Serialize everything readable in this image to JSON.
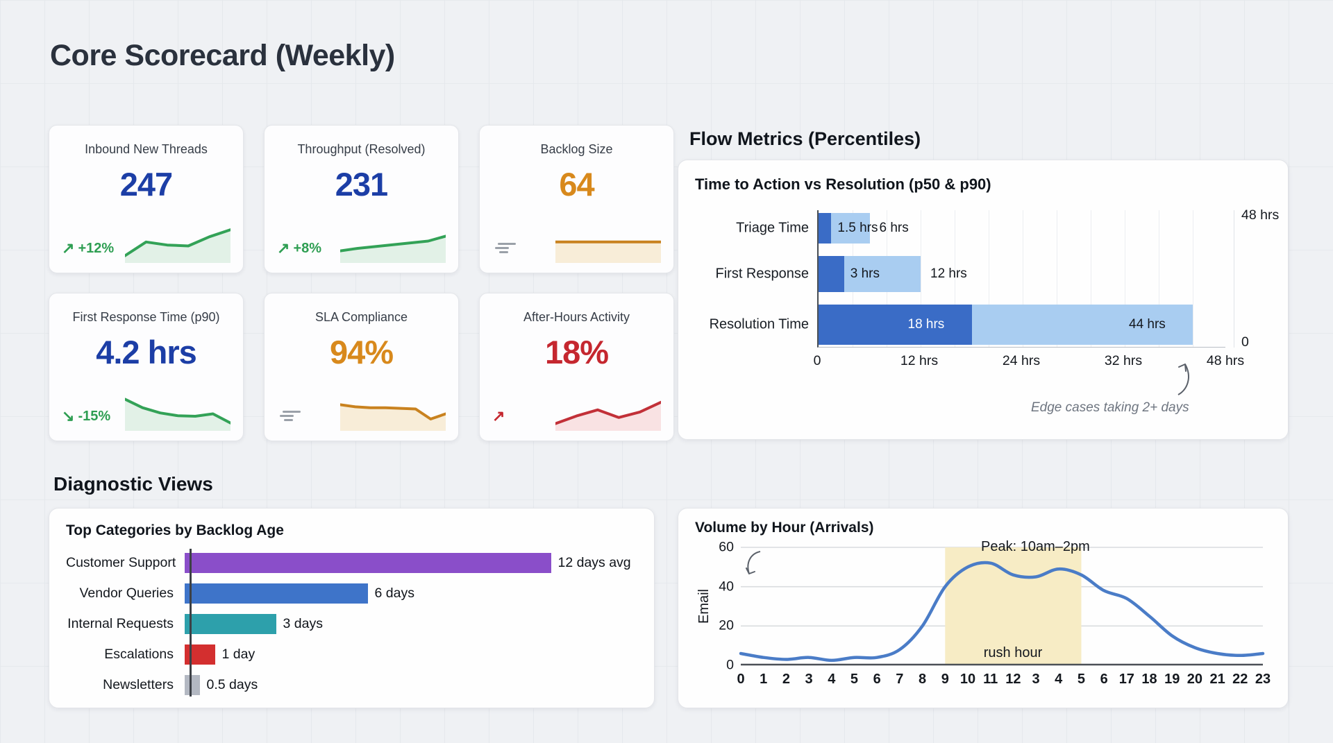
{
  "page": {
    "title": "Core Scorecard (Weekly)"
  },
  "kpis": [
    {
      "label": "Inbound New Threads",
      "value": "247",
      "value_color": "#1c3ea6",
      "arrow": "↗",
      "trend_icon": "trend-up-arrow",
      "delta": "+12%",
      "delta_color": "#2e9e52",
      "spark": {
        "points": [
          10,
          55,
          45,
          42,
          72,
          95
        ],
        "line": "#33a257",
        "fill": "#e2f1e7"
      }
    },
    {
      "label": "Throughput (Resolved)",
      "value": "231",
      "value_color": "#1c3ea6",
      "arrow": "↗",
      "trend_icon": "trend-up-arrow",
      "delta": "+8%",
      "delta_color": "#2e9e52",
      "spark": {
        "points": [
          26,
          34,
          40,
          46,
          52,
          58,
          74
        ],
        "line": "#33a257",
        "fill": "#e2f1e7"
      }
    },
    {
      "label": "Backlog Size",
      "value": "64",
      "value_color": "#d8891c",
      "trend_icon": "flat-trend-lines",
      "delta": null,
      "delta_color": null,
      "spark": {
        "points": [
          55,
          55,
          55,
          55,
          55
        ],
        "line": "#c9821f",
        "fill": "#f8edd8"
      }
    },
    {
      "label": "First Response Time (p90)",
      "value": "4.2 hrs",
      "value_color": "#1c3ea6",
      "arrow": "↘",
      "trend_icon": "trend-down-arrow",
      "delta": "-15%",
      "delta_color": "#2e9e52",
      "spark": {
        "points": [
          90,
          62,
          45,
          36,
          34,
          42,
          12
        ],
        "line": "#33a257",
        "fill": "#e2f1e7"
      }
    },
    {
      "label": "SLA Compliance",
      "value": "94%",
      "value_color": "#d8891c",
      "trend_icon": "flat-trend-lines",
      "delta": null,
      "delta_color": null,
      "spark": {
        "points": [
          72,
          65,
          62,
          62,
          60,
          58,
          25,
          42
        ],
        "line": "#c9821f",
        "fill": "#f8edd8"
      }
    },
    {
      "label": "After-Hours Activity",
      "value": "18%",
      "value_color": "#c5272f",
      "arrow": "↗",
      "trend_icon": "trend-up-arrow",
      "delta": "",
      "delta_color": "#c5272f",
      "spark": {
        "points": [
          10,
          35,
          55,
          30,
          48,
          80
        ],
        "line": "#c23038",
        "fill": "#f9e2e3"
      }
    }
  ],
  "flow": {
    "heading": "Flow Metrics (Percentiles)",
    "panel_title": "Time to Action vs Resolution (p50 & p90)",
    "right_axis_top": "48 hrs",
    "right_axis_bottom": "0",
    "annotation": "Edge cases taking 2+ days"
  },
  "diag": {
    "heading": "Diagnostic Views"
  },
  "backlog": {
    "title": "Top Categories by Backlog Age"
  },
  "volume": {
    "title": "Volume by Hour (Arrivals)",
    "ylabel": "Email",
    "band_label": "rush hour",
    "peak_annotation": "Peak: 10am–2pm"
  },
  "chart_data": [
    {
      "id": "flow_percentiles",
      "type": "bar",
      "orientation": "horizontal",
      "title": "Time to Action vs Resolution (p50 & p90)",
      "categories": [
        "Triage Time",
        "First Response",
        "Resolution Time"
      ],
      "series": [
        {
          "name": "p50",
          "values": [
            1.5,
            3,
            18
          ],
          "labels": [
            "1.5 hrs",
            "3 hrs",
            "18 hrs"
          ],
          "color": "#3a6cc6"
        },
        {
          "name": "p90",
          "values": [
            6,
            12,
            44
          ],
          "labels": [
            "6 hrs",
            "12 hrs",
            "44 hrs"
          ],
          "color": "#a9cdf1"
        }
      ],
      "xlim": [
        0,
        48
      ],
      "x_tick_labels": [
        "0",
        "12 hrs",
        "24 hrs",
        "32 hrs",
        "48 hrs"
      ],
      "grid_step_hrs": 4,
      "annotation": "Edge cases taking 2+ days"
    },
    {
      "id": "backlog_age",
      "type": "bar",
      "orientation": "horizontal",
      "title": "Top Categories by Backlog Age",
      "categories": [
        "Customer Support",
        "Vendor Queries",
        "Internal Requests",
        "Escalations",
        "Newsletters"
      ],
      "values": [
        12,
        6,
        3,
        1,
        0.5
      ],
      "value_labels": [
        "12 days avg",
        "6 days",
        "3 days",
        "1 day",
        "0.5 days"
      ],
      "colors": [
        "#8a4ec9",
        "#3e74c9",
        "#2da0ab",
        "#d32f2f",
        "#b3b8c2"
      ],
      "xlim": [
        0,
        13
      ]
    },
    {
      "id": "volume_by_hour",
      "type": "line",
      "title": "Volume by Hour (Arrivals)",
      "xlabel": "",
      "ylabel": "Email",
      "x": [
        0,
        1,
        2,
        3,
        4,
        5,
        6,
        7,
        8,
        9,
        10,
        11,
        12,
        13,
        14,
        15,
        16,
        17,
        18,
        19,
        20,
        21,
        22,
        23
      ],
      "x_tick_labels": [
        "0",
        "1",
        "2",
        "3",
        "4",
        "5",
        "6",
        "7",
        "8",
        "9",
        "10",
        "11",
        "12",
        "3",
        "4",
        "5",
        "6",
        "17",
        "18",
        "19",
        "20",
        "21",
        "22",
        "23"
      ],
      "values": [
        6,
        4,
        3,
        4,
        2.5,
        4,
        4,
        8,
        20,
        40,
        50,
        52,
        46,
        45,
        49,
        46,
        38,
        34,
        25,
        15,
        9,
        6,
        5,
        6
      ],
      "ylim": [
        0,
        60
      ],
      "y_ticks": [
        0,
        20,
        40,
        60
      ],
      "grid": true,
      "line_color": "#4a7cc7",
      "band": {
        "from_hour": 9,
        "to_hour": 15,
        "label": "rush hour",
        "color": "#f7ecc5"
      },
      "annotation": "Peak: 10am–2pm"
    }
  ]
}
